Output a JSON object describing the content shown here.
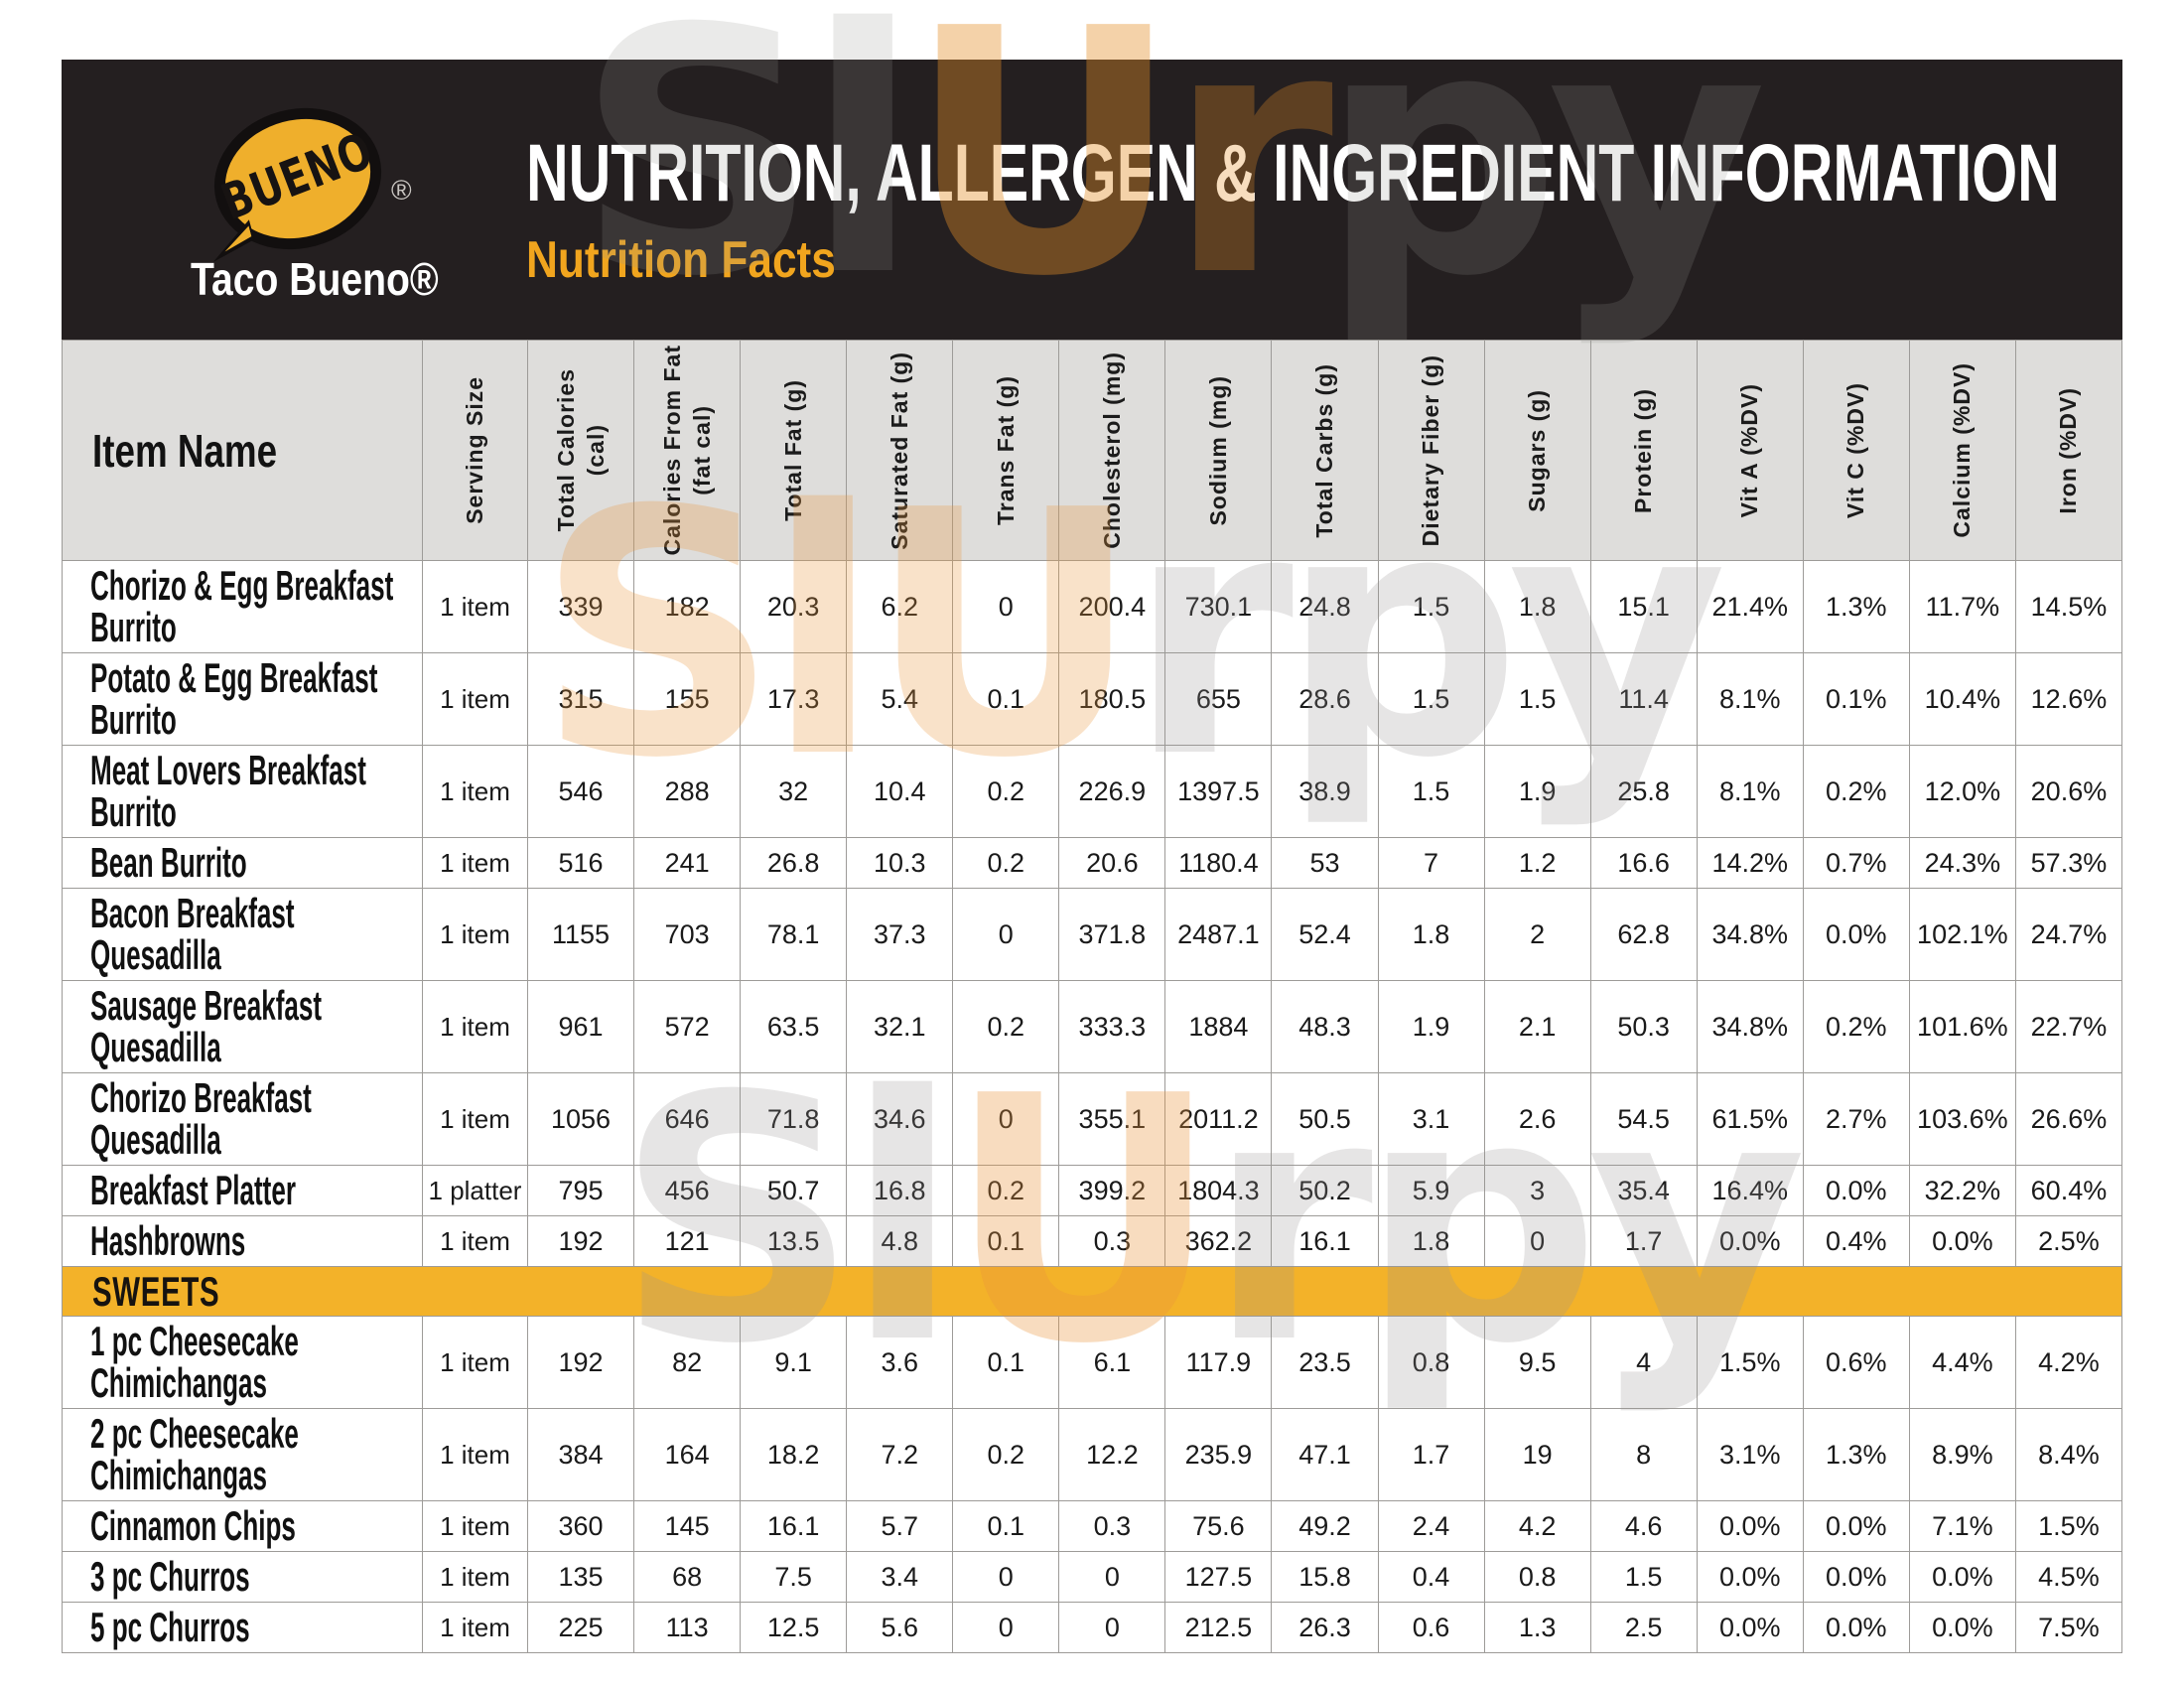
{
  "watermark": "SlUrpy",
  "header": {
    "logo_bubble": "BUENO",
    "logo_registered": "®",
    "brand": "Taco Bueno®",
    "title": "NUTRITION, ALLERGEN & INGREDIENT INFORMATION",
    "subtitle": "Nutrition Facts"
  },
  "table": {
    "item_header": "Item Name",
    "columns": [
      [
        "Serving Size"
      ],
      [
        "Total Calories",
        "(cal)"
      ],
      [
        "Calories From Fat",
        "(fat cal)"
      ],
      [
        "Total Fat (g)"
      ],
      [
        "Saturated Fat (g)"
      ],
      [
        "Trans Fat (g)"
      ],
      [
        "Cholesterol (mg)"
      ],
      [
        "Sodium (mg)"
      ],
      [
        "Total Carbs (g)"
      ],
      [
        "Dietary Fiber (g)"
      ],
      [
        "Sugars (g)"
      ],
      [
        "Protein (g)"
      ],
      [
        "Vit A (%DV)"
      ],
      [
        "Vit C (%DV)"
      ],
      [
        "Calcium (%DV)"
      ],
      [
        "Iron (%DV)"
      ]
    ],
    "rows": [
      {
        "type": "item",
        "name": "Chorizo & Egg Breakfast Burrito",
        "serving": "1 item",
        "values": [
          "339",
          "182",
          "20.3",
          "6.2",
          "0",
          "200.4",
          "730.1",
          "24.8",
          "1.5",
          "1.8",
          "15.1",
          "21.4%",
          "1.3%",
          "11.7%",
          "14.5%"
        ]
      },
      {
        "type": "item",
        "name": "Potato & Egg Breakfast Burrito",
        "serving": "1 item",
        "values": [
          "315",
          "155",
          "17.3",
          "5.4",
          "0.1",
          "180.5",
          "655",
          "28.6",
          "1.5",
          "1.5",
          "11.4",
          "8.1%",
          "0.1%",
          "10.4%",
          "12.6%"
        ]
      },
      {
        "type": "item",
        "name": "Meat Lovers Breakfast Burrito",
        "serving": "1 item",
        "values": [
          "546",
          "288",
          "32",
          "10.4",
          "0.2",
          "226.9",
          "1397.5",
          "38.9",
          "1.5",
          "1.9",
          "25.8",
          "8.1%",
          "0.2%",
          "12.0%",
          "20.6%"
        ]
      },
      {
        "type": "item",
        "name": "Bean Burrito",
        "serving": "1 item",
        "values": [
          "516",
          "241",
          "26.8",
          "10.3",
          "0.2",
          "20.6",
          "1180.4",
          "53",
          "7",
          "1.2",
          "16.6",
          "14.2%",
          "0.7%",
          "24.3%",
          "57.3%"
        ]
      },
      {
        "type": "item",
        "name": "Bacon Breakfast Quesadilla",
        "serving": "1 item",
        "values": [
          "1155",
          "703",
          "78.1",
          "37.3",
          "0",
          "371.8",
          "2487.1",
          "52.4",
          "1.8",
          "2",
          "62.8",
          "34.8%",
          "0.0%",
          "102.1%",
          "24.7%"
        ]
      },
      {
        "type": "item",
        "name": "Sausage Breakfast Quesadilla",
        "serving": "1 item",
        "values": [
          "961",
          "572",
          "63.5",
          "32.1",
          "0.2",
          "333.3",
          "1884",
          "48.3",
          "1.9",
          "2.1",
          "50.3",
          "34.8%",
          "0.2%",
          "101.6%",
          "22.7%"
        ]
      },
      {
        "type": "item",
        "name": "Chorizo Breakfast Quesadilla",
        "serving": "1 item",
        "values": [
          "1056",
          "646",
          "71.8",
          "34.6",
          "0",
          "355.1",
          "2011.2",
          "50.5",
          "3.1",
          "2.6",
          "54.5",
          "61.5%",
          "2.7%",
          "103.6%",
          "26.6%"
        ]
      },
      {
        "type": "item",
        "name": "Breakfast Platter",
        "serving": "1 platter",
        "values": [
          "795",
          "456",
          "50.7",
          "16.8",
          "0.2",
          "399.2",
          "1804.3",
          "50.2",
          "5.9",
          "3",
          "35.4",
          "16.4%",
          "0.0%",
          "32.2%",
          "60.4%"
        ]
      },
      {
        "type": "item",
        "name": "Hashbrowns",
        "serving": "1 item",
        "values": [
          "192",
          "121",
          "13.5",
          "4.8",
          "0.1",
          "0.3",
          "362.2",
          "16.1",
          "1.8",
          "0",
          "1.7",
          "0.0%",
          "0.4%",
          "0.0%",
          "2.5%"
        ]
      },
      {
        "type": "section",
        "label": "SWEETS"
      },
      {
        "type": "item",
        "name": "1 pc Cheesecake Chimichangas",
        "serving": "1 item",
        "values": [
          "192",
          "82",
          "9.1",
          "3.6",
          "0.1",
          "6.1",
          "117.9",
          "23.5",
          "0.8",
          "9.5",
          "4",
          "1.5%",
          "0.6%",
          "4.4%",
          "4.2%"
        ]
      },
      {
        "type": "item",
        "name": "2 pc Cheesecake Chimichangas",
        "serving": "1 item",
        "values": [
          "384",
          "164",
          "18.2",
          "7.2",
          "0.2",
          "12.2",
          "235.9",
          "47.1",
          "1.7",
          "19",
          "8",
          "3.1%",
          "1.3%",
          "8.9%",
          "8.4%"
        ]
      },
      {
        "type": "item",
        "name": "Cinnamon Chips",
        "serving": "1 item",
        "values": [
          "360",
          "145",
          "16.1",
          "5.7",
          "0.1",
          "0.3",
          "75.6",
          "49.2",
          "2.4",
          "4.2",
          "4.6",
          "0.0%",
          "0.0%",
          "7.1%",
          "1.5%"
        ]
      },
      {
        "type": "item",
        "name": "3 pc Churros",
        "serving": "1 item",
        "values": [
          "135",
          "68",
          "7.5",
          "3.4",
          "0",
          "0",
          "127.5",
          "15.8",
          "0.4",
          "0.8",
          "1.5",
          "0.0%",
          "0.0%",
          "0.0%",
          "4.5%"
        ]
      },
      {
        "type": "item",
        "name": "5 pc Churros",
        "serving": "1 item",
        "values": [
          "225",
          "113",
          "12.5",
          "5.6",
          "0",
          "0",
          "212.5",
          "26.3",
          "0.6",
          "1.3",
          "2.5",
          "0.0%",
          "0.0%",
          "0.0%",
          "7.5%"
        ]
      }
    ]
  },
  "colors": {
    "masthead_bg": "#241F20",
    "logo_gold": "#EFAF2C",
    "subtitle_gold": "#F1A51E",
    "sweets_band": "#F3B229",
    "header_band": "#DEDDDB",
    "border": "#9D9B98"
  }
}
